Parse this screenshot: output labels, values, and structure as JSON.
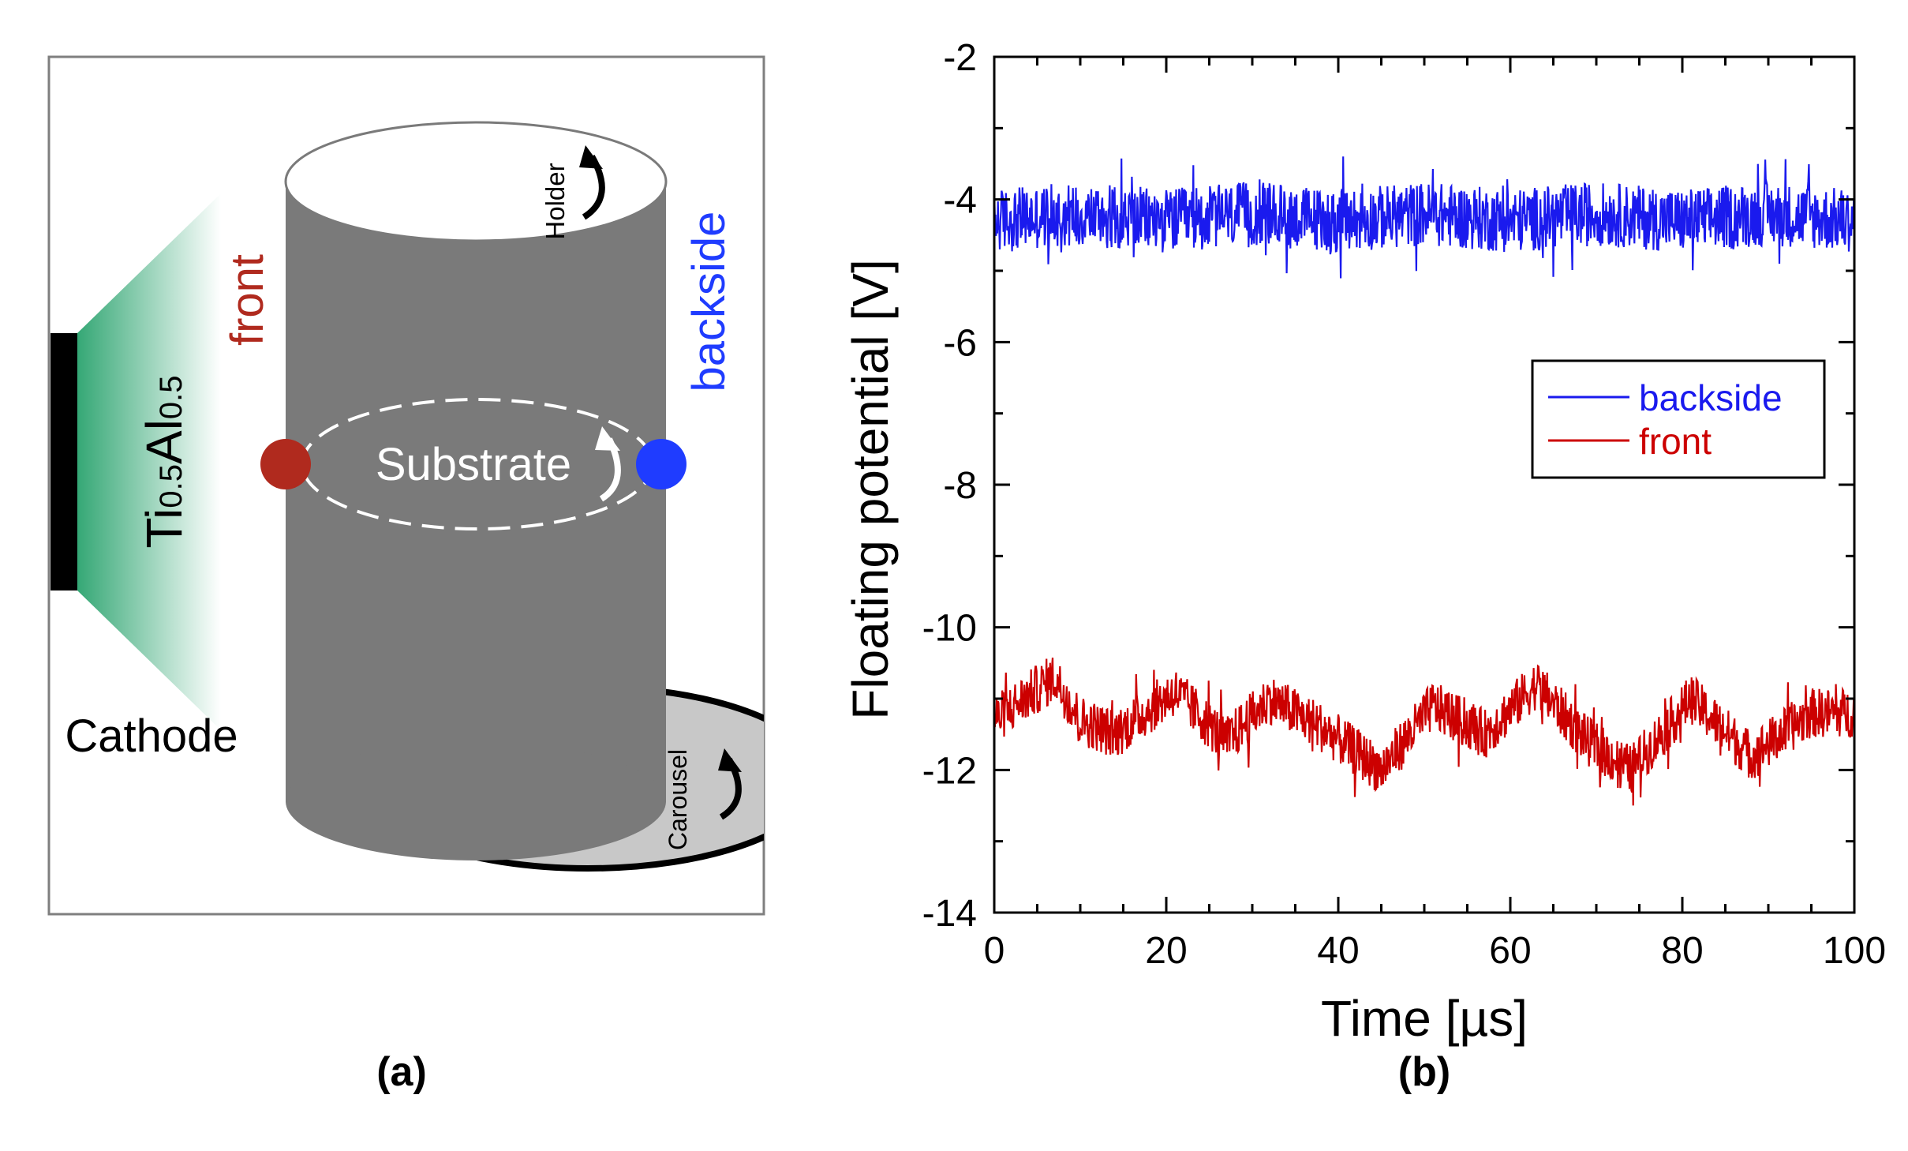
{
  "panel_a": {
    "target_material": {
      "el1": "Ti",
      "sub1": "0.5",
      "el2": "Al",
      "sub2": "0.5"
    },
    "front_label": "front",
    "backside_label": "backside",
    "substrate_label": "Substrate",
    "holder_label": "Holder",
    "carousel_label": "Carousel",
    "cathode_label": "Cathode",
    "caption": "(a)",
    "colors": {
      "front": "#b02a1e",
      "backside": "#1f3cff",
      "cylinder": "#7a7a7a",
      "plasma": "#2aa36e"
    }
  },
  "panel_b": {
    "caption": "(b)"
  },
  "chart_data": {
    "type": "line",
    "title": "",
    "xlabel": "Time [µs]",
    "ylabel": "Floating potential [V]",
    "xlim": [
      0,
      100
    ],
    "ylim": [
      -14,
      -2
    ],
    "xticks": [
      0,
      20,
      40,
      60,
      80,
      100
    ],
    "yticks": [
      -2,
      -4,
      -6,
      -8,
      -10,
      -12,
      -14
    ],
    "grid": false,
    "legend_position": "right",
    "series": [
      {
        "name": "backside",
        "color": "#1a1aee",
        "mean": -4.25,
        "noise_amplitude": 0.45,
        "x": [
          0,
          10,
          20,
          30,
          40,
          50,
          60,
          70,
          80,
          90,
          100
        ],
        "values": [
          -4.3,
          -4.2,
          -4.3,
          -4.2,
          -4.3,
          -4.2,
          -4.3,
          -4.2,
          -4.3,
          -4.2,
          -4.3
        ]
      },
      {
        "name": "front",
        "color": "#cc0000",
        "mean": -11.3,
        "noise_amplitude": 0.35,
        "x": [
          0,
          7,
          10,
          14,
          21,
          27,
          32,
          38,
          45,
          51,
          57,
          63,
          69,
          74,
          81,
          88,
          95,
          100
        ],
        "values": [
          -11.3,
          -10.7,
          -11.3,
          -11.5,
          -10.9,
          -11.6,
          -11.0,
          -11.4,
          -12.0,
          -11.1,
          -11.5,
          -10.8,
          -11.6,
          -12.0,
          -11.0,
          -11.8,
          -11.2,
          -11.2
        ]
      }
    ]
  }
}
